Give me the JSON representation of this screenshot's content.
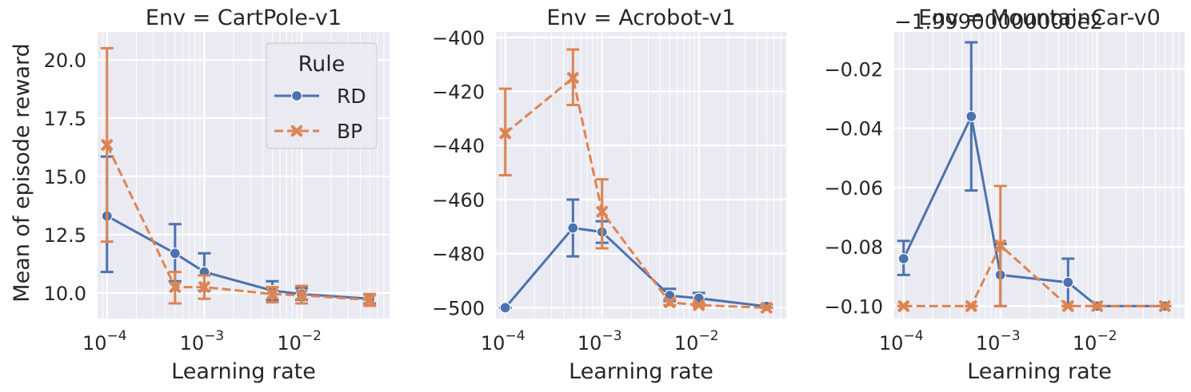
{
  "colors": {
    "RD": "#4c72b0",
    "BP": "#dd8452",
    "panel_bg": "#eaeaf2",
    "grid": "#ffffff"
  },
  "chart_data": [
    {
      "type": "line",
      "title": "Env = CartPole-v1",
      "xlabel": "Learning rate",
      "ylabel": "Mean of episode reward",
      "xscale": "log",
      "xlim": [
        8e-05,
        0.08
      ],
      "ylim": [
        8.9,
        21.2
      ],
      "xticks": [
        0.0001,
        0.001,
        0.01
      ],
      "xtick_labels": [
        "10",
        "10",
        "10"
      ],
      "xtick_exponents": [
        "−4",
        "−3",
        "−2"
      ],
      "yticks": [
        10.0,
        12.5,
        15.0,
        17.5,
        20.0
      ],
      "ytick_labels": [
        "10.0",
        "12.5",
        "15.0",
        "17.5",
        "20.0"
      ],
      "offset_text": "",
      "grid": true,
      "legend": {
        "title": "Rule",
        "position": "top-right",
        "entries": [
          "RD",
          "BP"
        ]
      },
      "series": [
        {
          "name": "RD",
          "marker": "circle",
          "dash": "solid",
          "x": [
            0.0001,
            0.0005,
            0.001,
            0.005,
            0.01,
            0.05
          ],
          "y": [
            13.3,
            11.7,
            10.9,
            10.1,
            9.95,
            9.75
          ],
          "err_low": [
            10.9,
            10.5,
            10.1,
            9.7,
            9.7,
            9.55
          ],
          "err_high": [
            15.85,
            12.95,
            11.7,
            10.5,
            10.2,
            9.95
          ]
        },
        {
          "name": "BP",
          "marker": "x",
          "dash": "dashed",
          "x": [
            0.0001,
            0.0005,
            0.001,
            0.005,
            0.01,
            0.05
          ],
          "y": [
            16.35,
            10.25,
            10.25,
            9.95,
            9.9,
            9.7
          ],
          "err_low": [
            12.2,
            9.55,
            9.75,
            9.6,
            9.55,
            9.45
          ],
          "err_high": [
            20.5,
            10.9,
            10.75,
            10.25,
            10.3,
            9.95
          ]
        }
      ]
    },
    {
      "type": "line",
      "title": "Env = Acrobot-v1",
      "xlabel": "Learning rate",
      "ylabel": "",
      "xscale": "log",
      "xlim": [
        8e-05,
        0.08
      ],
      "ylim": [
        -504,
        -398
      ],
      "xticks": [
        0.0001,
        0.001,
        0.01
      ],
      "xtick_labels": [
        "10",
        "10",
        "10"
      ],
      "xtick_exponents": [
        "−4",
        "−3",
        "−2"
      ],
      "yticks": [
        -500,
        -480,
        -460,
        -440,
        -420,
        -400
      ],
      "ytick_labels": [
        "−500",
        "−480",
        "−460",
        "−440",
        "−420",
        "−400"
      ],
      "offset_text": "",
      "grid": true,
      "series": [
        {
          "name": "RD",
          "marker": "circle",
          "dash": "solid",
          "x": [
            0.0001,
            0.0005,
            0.001,
            0.005,
            0.01,
            0.05
          ],
          "y": [
            -500,
            -470.5,
            -472,
            -495.5,
            -496.5,
            -499.5
          ],
          "err_low": [
            -500,
            -481,
            -476,
            -497.5,
            -498.5,
            -500
          ],
          "err_high": [
            -500,
            -460,
            -468,
            -493,
            -494.5,
            -499
          ]
        },
        {
          "name": "BP",
          "marker": "x",
          "dash": "dashed",
          "x": [
            0.0001,
            0.0005,
            0.001,
            0.005,
            0.01,
            0.05
          ],
          "y": [
            -435.5,
            -415,
            -464.5,
            -498,
            -499,
            -500
          ],
          "err_low": [
            -451,
            -425,
            -478,
            -499,
            -499.5,
            -500
          ],
          "err_high": [
            -419,
            -404.5,
            -452.5,
            -497,
            -498.5,
            -500
          ]
        }
      ]
    },
    {
      "type": "line",
      "title": "Env = MountainCar-v0",
      "xlabel": "Learning rate",
      "ylabel": "",
      "xscale": "log",
      "xlim": [
        8e-05,
        0.08
      ],
      "ylim": [
        -0.1042,
        -0.0075
      ],
      "xticks": [
        0.0001,
        0.001,
        0.01
      ],
      "xtick_labels": [
        "10",
        "10",
        "10"
      ],
      "xtick_exponents": [
        "−4",
        "−3",
        "−2"
      ],
      "yticks": [
        -0.1,
        -0.08,
        -0.06,
        -0.04,
        -0.02
      ],
      "ytick_labels": [
        "−0.10",
        "−0.08",
        "−0.06",
        "−0.04",
        "−0.02"
      ],
      "offset_text": "−1.99900000000e2",
      "grid": true,
      "series": [
        {
          "name": "RD",
          "marker": "circle",
          "dash": "solid",
          "x": [
            0.0001,
            0.0005,
            0.001,
            0.005,
            0.01,
            0.05
          ],
          "y": [
            -0.084,
            -0.036,
            -0.0895,
            -0.092,
            -0.1,
            -0.1
          ],
          "err_low": [
            -0.0895,
            -0.061,
            -0.1,
            -0.1,
            -0.1,
            -0.1
          ],
          "err_high": [
            -0.078,
            -0.011,
            -0.079,
            -0.084,
            -0.1,
            -0.1
          ]
        },
        {
          "name": "BP",
          "marker": "x",
          "dash": "dashed",
          "x": [
            0.0001,
            0.0005,
            0.001,
            0.005,
            0.01,
            0.05
          ],
          "y": [
            -0.1,
            -0.1,
            -0.0795,
            -0.1,
            -0.1,
            -0.1
          ],
          "err_low": [
            -0.1,
            -0.1,
            -0.1,
            -0.1,
            -0.1,
            -0.1
          ],
          "err_high": [
            -0.1,
            -0.1,
            -0.0595,
            -0.1,
            -0.1,
            -0.1
          ]
        }
      ]
    }
  ]
}
